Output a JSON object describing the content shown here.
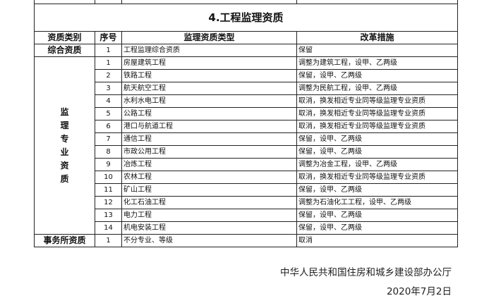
{
  "section_title": "4.工程监理资质",
  "headers": [
    "资质类别",
    "序号",
    "监理资质类型",
    "改革措施"
  ],
  "comprehensive": {
    "category": "综合资质",
    "no": "1",
    "type": "工程监理综合资质",
    "measure": "保留"
  },
  "specialty": {
    "category": "监理专业资质",
    "rows": [
      {
        "no": "1",
        "type": "房屋建筑工程",
        "measure": "调整为建筑工程，设甲、乙两级"
      },
      {
        "no": "2",
        "type": "铁路工程",
        "measure": "保留，设甲、乙两级"
      },
      {
        "no": "3",
        "type": "航天航空工程",
        "measure": "调整为民航工程，设甲、乙两级"
      },
      {
        "no": "4",
        "type": "水利水电工程",
        "measure": "取消，换发相近专业同等级监理专业资质"
      },
      {
        "no": "5",
        "type": "公路工程",
        "measure": "取消，换发相近专业同等级监理专业资质"
      },
      {
        "no": "6",
        "type": "港口与航道工程",
        "measure": "取消，换发相近专业同等级监理专业资质"
      },
      {
        "no": "7",
        "type": "通信工程",
        "measure": "保留，设甲、乙两级"
      },
      {
        "no": "8",
        "type": "市政公用工程",
        "measure": "保留，设甲、乙两级"
      },
      {
        "no": "9",
        "type": "冶炼工程",
        "measure": "调整为冶金工程，设甲、乙两级"
      },
      {
        "no": "10",
        "type": "农林工程",
        "measure": "取消，换发相近专业同等级监理专业资质"
      },
      {
        "no": "11",
        "type": "矿山工程",
        "measure": "保留，设甲、乙两级"
      },
      {
        "no": "12",
        "type": "化工石油工程",
        "measure": "调整为石油化工工程，设甲、乙两级"
      },
      {
        "no": "13",
        "type": "电力工程",
        "measure": "保留，设甲、乙两级"
      },
      {
        "no": "14",
        "type": "机电安装工程",
        "measure": "保留，设甲、乙两级"
      }
    ]
  },
  "office": {
    "category": "事务所资质",
    "no": "1",
    "type": "不分专业、等级",
    "measure": "取消"
  },
  "footer": {
    "issuer": "中华人民共和国住房和城乡建设部办公厅",
    "date": "2020年7月2日"
  }
}
